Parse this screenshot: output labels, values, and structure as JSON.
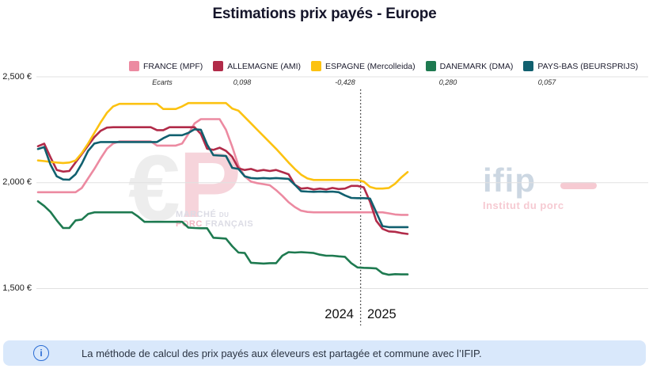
{
  "title": "Estimations prix payés - Europe",
  "chart_data": {
    "type": "line",
    "title": "Estimations prix payés - Europe",
    "x_axis": {
      "unit": "week",
      "years": [
        "2024",
        "2025"
      ],
      "year_boundary_week": 52,
      "weeks_total": 60
    },
    "y_axis": {
      "min": 1500,
      "max": 2500,
      "unit": "€",
      "tick_values": [
        2500,
        2000,
        1500
      ],
      "tick_labels": [
        "2,500 €",
        "2,000 €",
        "1,500 €"
      ],
      "grid": true
    },
    "ecarts_label": "Ecarts",
    "legend_position": "top",
    "series": [
      {
        "name": "FRANCE (MPF)",
        "color": "#ec8aa1",
        "ecart": null,
        "values": [
          1955,
          1955,
          1955,
          1955,
          1955,
          1955,
          1955,
          1975,
          2020,
          2065,
          2115,
          2160,
          2185,
          2195,
          2195,
          2195,
          2195,
          2195,
          2195,
          2175,
          2175,
          2175,
          2175,
          2185,
          2230,
          2280,
          2300,
          2300,
          2300,
          2300,
          2250,
          2170,
          2080,
          2030,
          2005,
          1998,
          1993,
          1988,
          1965,
          1938,
          1908,
          1885,
          1868,
          1862,
          1860,
          1860,
          1860,
          1860,
          1860,
          1860,
          1860,
          1860,
          1860,
          1860,
          1860,
          1860,
          1855,
          1850,
          1848,
          1848
        ]
      },
      {
        "name": "ALLEMAGNE (AMI)",
        "color": "#b12b49",
        "ecart": "0,098",
        "values": [
          2172,
          2184,
          2120,
          2060,
          2052,
          2055,
          2096,
          2135,
          2175,
          2215,
          2245,
          2260,
          2262,
          2262,
          2262,
          2262,
          2262,
          2262,
          2262,
          2248,
          2248,
          2262,
          2262,
          2262,
          2262,
          2262,
          2230,
          2160,
          2155,
          2165,
          2150,
          2122,
          2068,
          2060,
          2065,
          2055,
          2060,
          2055,
          2060,
          2050,
          2040,
          1990,
          1972,
          1975,
          1968,
          1972,
          1968,
          1975,
          1970,
          1972,
          1985,
          1985,
          1978,
          1910,
          1820,
          1782,
          1770,
          1768,
          1762,
          1758
        ]
      },
      {
        "name": "ESPAGNE (Mercolleida)",
        "color": "#fcc211",
        "ecart": "-0,428",
        "values": [
          2105,
          2102,
          2098,
          2095,
          2093,
          2095,
          2105,
          2140,
          2185,
          2235,
          2285,
          2330,
          2360,
          2372,
          2372,
          2372,
          2372,
          2372,
          2372,
          2372,
          2348,
          2348,
          2348,
          2360,
          2376,
          2376,
          2376,
          2376,
          2376,
          2376,
          2376,
          2350,
          2340,
          2310,
          2280,
          2250,
          2220,
          2190,
          2160,
          2128,
          2095,
          2065,
          2038,
          2020,
          2013,
          2013,
          2013,
          2013,
          2013,
          2013,
          2013,
          2013,
          2005,
          1980,
          1972,
          1972,
          1975,
          1995,
          2025,
          2050
        ]
      },
      {
        "name": "DANEMARK (DMA)",
        "color": "#1e7a50",
        "ecart": "0,280",
        "values": [
          1912,
          1890,
          1862,
          1822,
          1786,
          1786,
          1822,
          1826,
          1852,
          1860,
          1860,
          1860,
          1860,
          1860,
          1860,
          1860,
          1840,
          1815,
          1815,
          1815,
          1815,
          1815,
          1815,
          1815,
          1788,
          1786,
          1785,
          1785,
          1740,
          1738,
          1736,
          1700,
          1670,
          1668,
          1622,
          1620,
          1618,
          1620,
          1620,
          1655,
          1672,
          1670,
          1672,
          1670,
          1668,
          1660,
          1655,
          1655,
          1652,
          1650,
          1620,
          1600,
          1598,
          1597,
          1595,
          1572,
          1565,
          1568,
          1567,
          1567
        ]
      },
      {
        "name": "PAYS-BAS (BEURSPRIJS)",
        "color": "#11606f",
        "ecart": "0,057",
        "values": [
          2159,
          2168,
          2085,
          2030,
          2015,
          2014,
          2040,
          2090,
          2150,
          2185,
          2192,
          2192,
          2192,
          2192,
          2192,
          2192,
          2192,
          2192,
          2192,
          2192,
          2210,
          2224,
          2224,
          2224,
          2235,
          2252,
          2250,
          2180,
          2130,
          2128,
          2126,
          2070,
          2065,
          2030,
          2022,
          2020,
          2022,
          2020,
          2022,
          2020,
          2018,
          1990,
          1960,
          1958,
          1957,
          1958,
          1957,
          1958,
          1955,
          1940,
          1928,
          1927,
          1927,
          1925,
          1860,
          1795,
          1790,
          1790,
          1790,
          1790
        ]
      }
    ]
  },
  "watermark_mpf": {
    "euro_symbol": "€",
    "letter": "P",
    "line1_part1": "MARCHÉ",
    "line1_part2": "DU",
    "line2_part1": "PORC",
    "line2_part2": "FRANÇAIS"
  },
  "watermark_ifip": {
    "name": "ifip",
    "subtitle": "Institut du porc"
  },
  "info_banner": {
    "icon": "i",
    "text": "La méthode de calcul des prix payés aux éleveurs est partagée et commune avec l’IFIP."
  }
}
